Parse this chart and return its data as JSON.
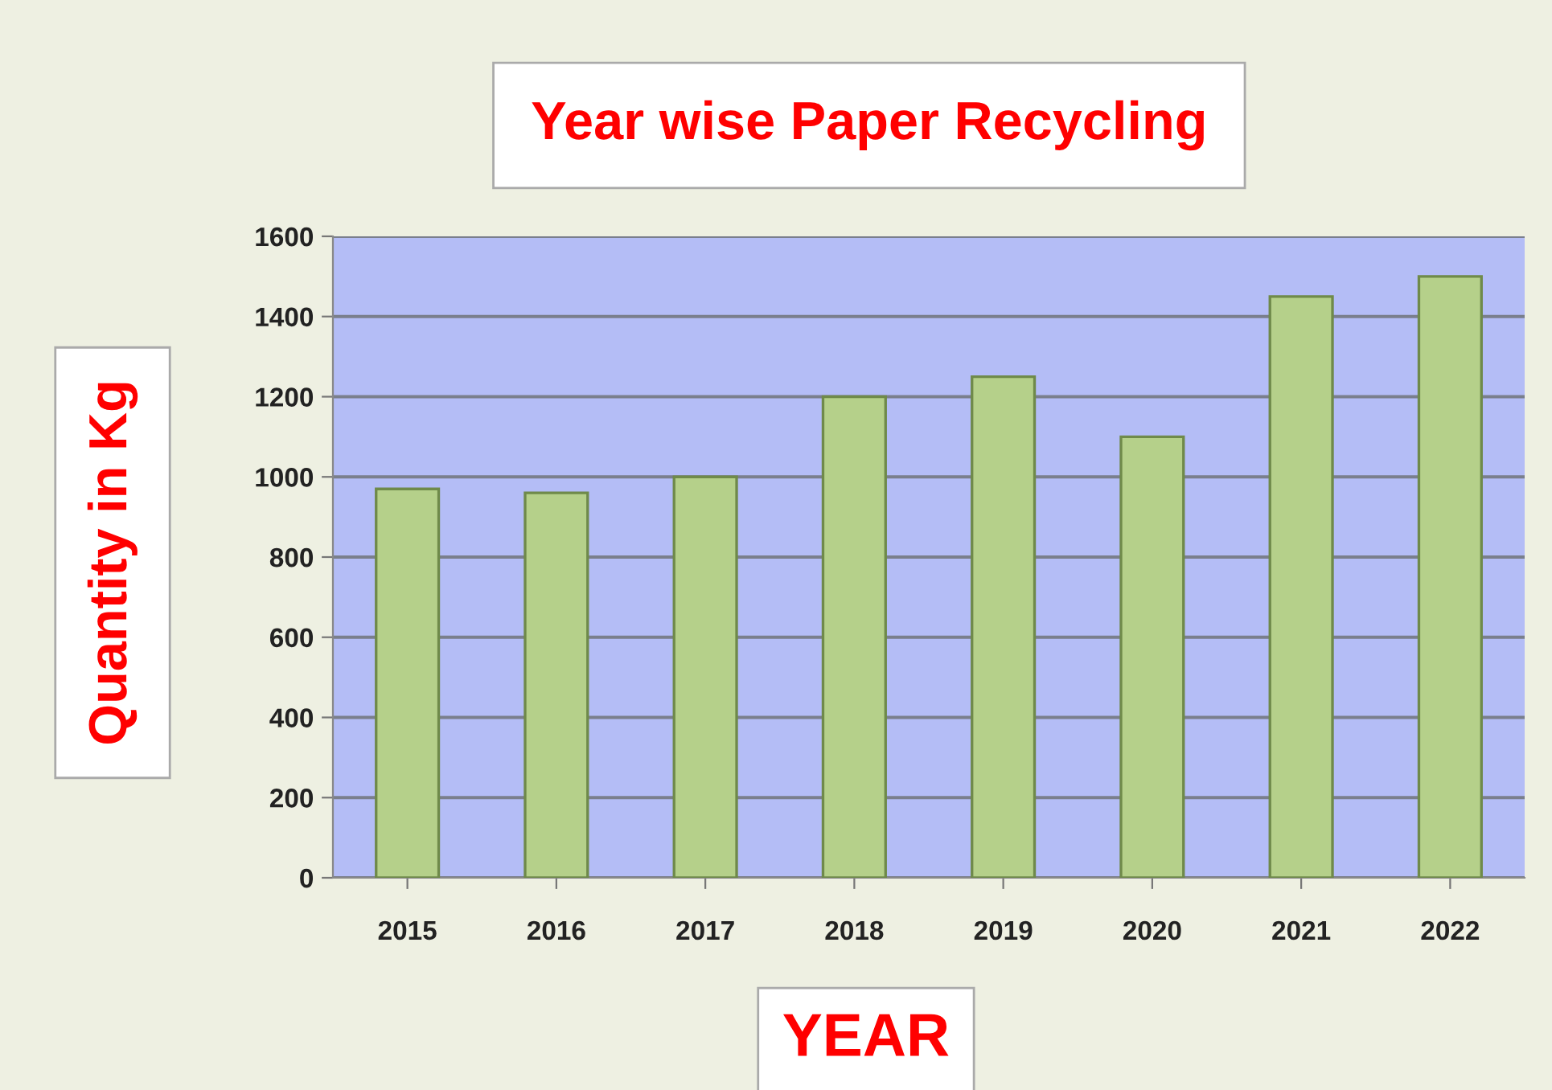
{
  "chart_data": {
    "type": "bar",
    "title": "Year wise Paper Recycling",
    "xlabel": "YEAR",
    "ylabel": "Quantity in Kg",
    "categories": [
      "2015",
      "2016",
      "2017",
      "2018",
      "2019",
      "2020",
      "2021",
      "2022"
    ],
    "values": [
      970,
      960,
      1000,
      1200,
      1250,
      1100,
      1450,
      1500
    ],
    "color": "#b5d08a",
    "ylim": [
      0,
      1600
    ],
    "yticks": [
      0,
      200,
      400,
      600,
      800,
      1000,
      1200,
      1400,
      1600
    ],
    "grid": "y",
    "legend": false
  }
}
